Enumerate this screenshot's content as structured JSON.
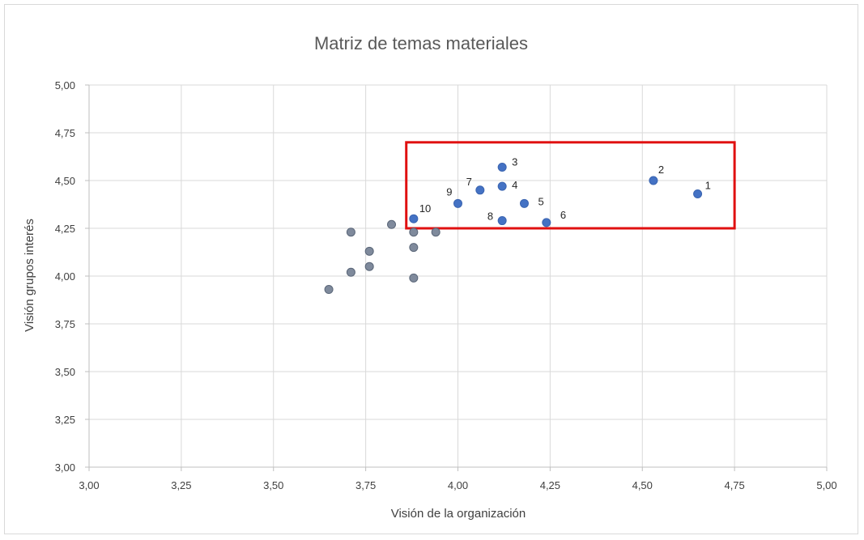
{
  "chart_data": {
    "type": "scatter",
    "title": "Matriz de temas materiales",
    "xlabel": "Visión de la organización",
    "ylabel": "Visión grupos interés",
    "xlim": [
      3.0,
      5.0
    ],
    "ylim": [
      3.0,
      5.0
    ],
    "x_ticks": [
      "3,00",
      "3,25",
      "3,50",
      "3,75",
      "4,00",
      "4,25",
      "4,50",
      "4,75",
      "5,00"
    ],
    "y_ticks": [
      "3,00",
      "3,25",
      "3,50",
      "3,75",
      "4,00",
      "4,25",
      "4,50",
      "4,75",
      "5,00"
    ],
    "grid": true,
    "highlight_box": {
      "x": [
        3.86,
        4.75
      ],
      "y": [
        4.25,
        4.7
      ],
      "color": "#e01010"
    },
    "labeled_points": [
      {
        "label": "1",
        "x": 4.65,
        "y": 4.43
      },
      {
        "label": "2",
        "x": 4.53,
        "y": 4.5
      },
      {
        "label": "3",
        "x": 4.12,
        "y": 4.57
      },
      {
        "label": "4",
        "x": 4.12,
        "y": 4.47
      },
      {
        "label": "5",
        "x": 4.18,
        "y": 4.38
      },
      {
        "label": "6",
        "x": 4.24,
        "y": 4.28
      },
      {
        "label": "7",
        "x": 4.06,
        "y": 4.45
      },
      {
        "label": "8",
        "x": 4.12,
        "y": 4.29
      },
      {
        "label": "9",
        "x": 4.0,
        "y": 4.38
      },
      {
        "label": "10",
        "x": 3.88,
        "y": 4.3
      }
    ],
    "other_points": [
      {
        "x": 3.65,
        "y": 3.93
      },
      {
        "x": 3.71,
        "y": 4.02
      },
      {
        "x": 3.71,
        "y": 4.23
      },
      {
        "x": 3.76,
        "y": 4.05
      },
      {
        "x": 3.76,
        "y": 4.13
      },
      {
        "x": 3.82,
        "y": 4.27
      },
      {
        "x": 3.88,
        "y": 3.99
      },
      {
        "x": 3.88,
        "y": 4.15
      },
      {
        "x": 3.88,
        "y": 4.23
      },
      {
        "x": 3.94,
        "y": 4.23
      }
    ],
    "colors": {
      "labeled": "#4472c4",
      "other": "#7f8a9c",
      "other_stroke": "#5a6678"
    }
  }
}
